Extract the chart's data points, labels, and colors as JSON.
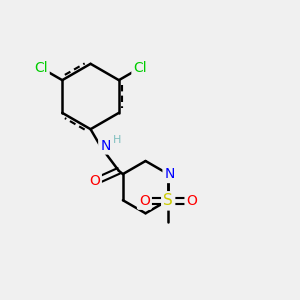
{
  "bg_color": "#f0f0f0",
  "bond_color": "#000000",
  "bond_width": 1.8,
  "atom_colors": {
    "Cl": "#00cc00",
    "N": "#0000ff",
    "O": "#ff0000",
    "S": "#cccc00",
    "C": "#000000",
    "H": "#7fbfbf"
  },
  "font_size": 9,
  "fig_size": [
    3.0,
    3.0
  ],
  "dpi": 100
}
